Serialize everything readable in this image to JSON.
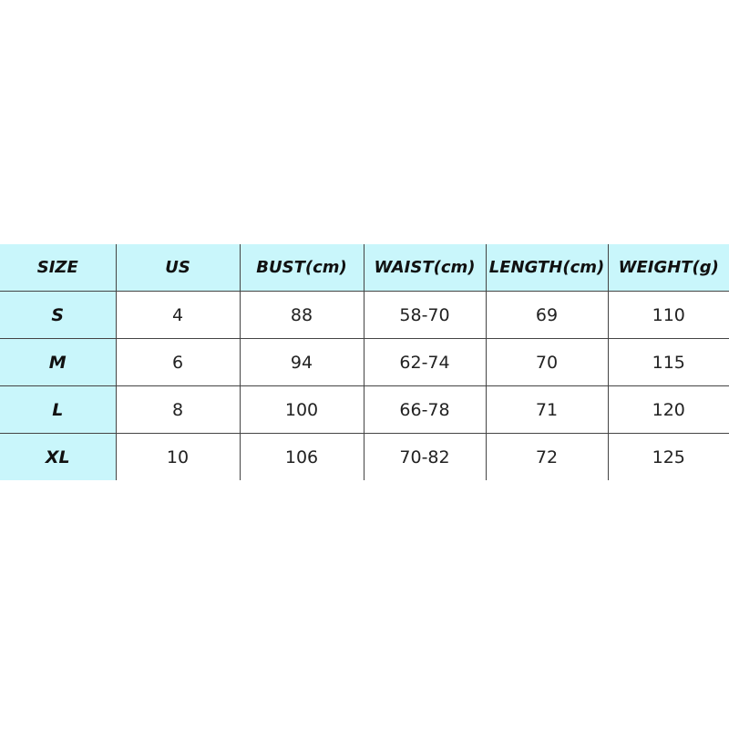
{
  "size_chart": {
    "header_color": "#c9f6fb",
    "columns": [
      "SIZE",
      "US",
      "BUST(cm)",
      "WAIST(cm)",
      "LENGTH(cm)",
      "WEIGHT(g)"
    ],
    "rows": [
      [
        "S",
        "4",
        "88",
        "58-70",
        "69",
        "110"
      ],
      [
        "M",
        "6",
        "94",
        "62-74",
        "70",
        "115"
      ],
      [
        "L",
        "8",
        "100",
        "66-78",
        "71",
        "120"
      ],
      [
        "XL",
        "10",
        "106",
        "70-82",
        "72",
        "125"
      ]
    ]
  }
}
